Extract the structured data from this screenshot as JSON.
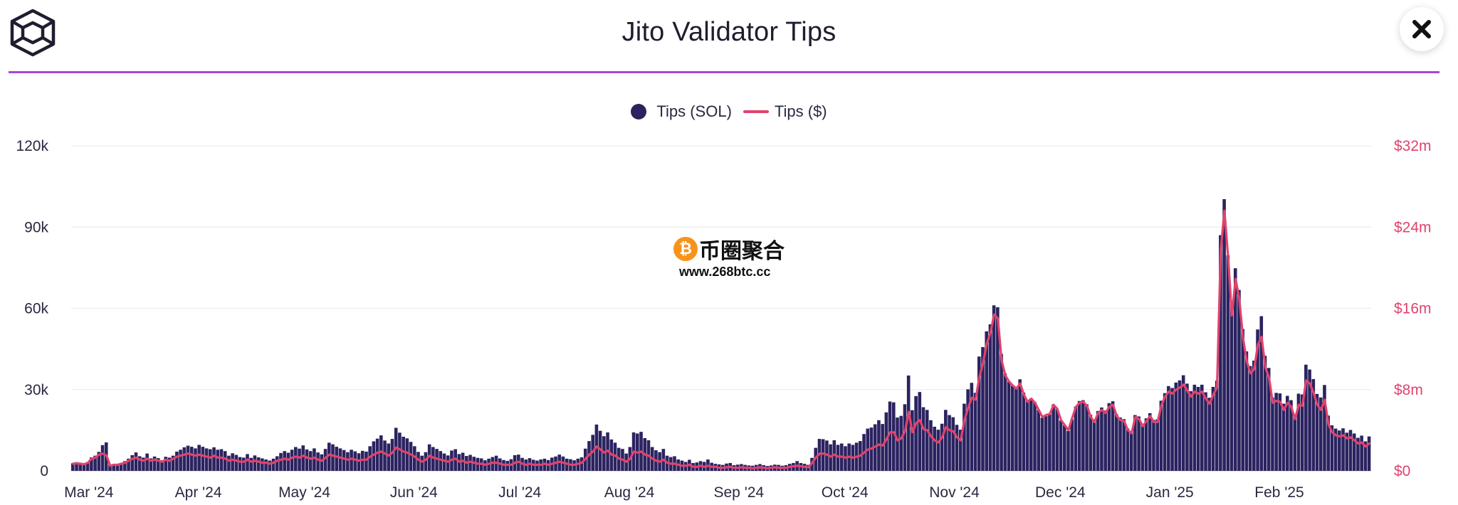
{
  "header": {
    "title": "Jito Validator Tips",
    "logo_icon": "cube-logo-icon",
    "close_icon": "close-icon",
    "rule_color": "#a349d0"
  },
  "watermark": {
    "text": "币圈聚合",
    "url": "www.268btc.cc",
    "coin_symbol": "₿"
  },
  "chart_data": {
    "type": "bar",
    "title": "Jito Validator Tips",
    "legend": {
      "position": "top-center"
    },
    "grid": true,
    "colors": {
      "sol": "#2b2360",
      "usd": "#e0436d"
    },
    "series": [
      {
        "name": "Tips (SOL)",
        "type": "bar",
        "axis": "left",
        "values": [
          2800,
          3200,
          2900,
          2600,
          3100,
          5000,
          5600,
          7000,
          9500,
          10500,
          2200,
          2400,
          2600,
          2900,
          3600,
          4500,
          5800,
          6800,
          5400,
          4900,
          6400,
          4600,
          5300,
          4700,
          3900,
          5200,
          4900,
          5600,
          7100,
          7800,
          8700,
          9300,
          8900,
          8300,
          9600,
          8900,
          8300,
          8000,
          8700,
          7800,
          8000,
          7300,
          5600,
          6500,
          5900,
          5100,
          4900,
          6200,
          4800,
          5700,
          5000,
          4600,
          4200,
          3800,
          4500,
          5400,
          6600,
          7300,
          6700,
          7800,
          8800,
          8200,
          9400,
          7900,
          7300,
          8300,
          6800,
          6100,
          8100,
          10400,
          9800,
          8900,
          8300,
          7700,
          6900,
          7800,
          7200,
          6500,
          7400,
          7100,
          9100,
          10900,
          11900,
          13100,
          11200,
          10100,
          11800,
          15900,
          14100,
          12600,
          12000,
          10700,
          9100,
          7000,
          5600,
          6900,
          9800,
          8800,
          8100,
          7300,
          6400,
          5700,
          7500,
          8000,
          6200,
          6700,
          5500,
          5900,
          5200,
          4800,
          4600,
          3900,
          4500,
          5100,
          5600,
          4600,
          4000,
          3700,
          4300,
          5800,
          6000,
          4800,
          4200,
          4700,
          4100,
          3800,
          4200,
          4500,
          4000,
          4900,
          5300,
          6000,
          5300,
          4500,
          4300,
          3900,
          4500,
          5000,
          8200,
          11000,
          13300,
          17100,
          14800,
          12800,
          14200,
          11600,
          10400,
          8500,
          8100,
          6400,
          8800,
          14200,
          13800,
          14400,
          12100,
          11300,
          8800,
          7600,
          6900,
          8100,
          5600,
          5100,
          5400,
          4200,
          3800,
          3300,
          4100,
          2900,
          3100,
          3600,
          3300,
          4200,
          3000,
          2600,
          2400,
          2200,
          2700,
          2900,
          2100,
          2300,
          2500,
          2200,
          2000,
          1900,
          2200,
          2500,
          2100,
          1800,
          2000,
          2300,
          2200,
          1900,
          2100,
          2600,
          2900,
          3600,
          2900,
          2600,
          2200,
          4800,
          8500,
          11800,
          11700,
          11200,
          9800,
          11300,
          9600,
          10100,
          9100,
          10100,
          9600,
          10400,
          11000,
          13600,
          15600,
          16000,
          17200,
          18700,
          17300,
          21600,
          25600,
          25300,
          19700,
          20300,
          24600,
          35200,
          22400,
          27600,
          29100,
          23500,
          22500,
          18700,
          16300,
          15200,
          17400,
          22500,
          20600,
          19800,
          17000,
          15200,
          24800,
          30100,
          32500,
          28800,
          42200,
          45700,
          51500,
          54100,
          61100,
          60400,
          43200,
          36000,
          33000,
          31500,
          30400,
          33800,
          28900,
          25700,
          26800,
          25400,
          22500,
          19600,
          20200,
          20900,
          24500,
          22800,
          18600,
          16800,
          14700,
          19000,
          23700,
          25800,
          26100,
          24600,
          20700,
          18500,
          22100,
          23400,
          22300,
          25000,
          25700,
          20900,
          19700,
          19100,
          15600,
          14100,
          20600,
          20100,
          17300,
          19400,
          21300,
          18800,
          19000,
          25900,
          28700,
          31300,
          30600,
          32600,
          33400,
          35300,
          32200,
          29400,
          31800,
          31000,
          31800,
          29000,
          27000,
          31000,
          33300,
          87000,
          100300,
          79600,
          61500,
          74800,
          66800,
          52400,
          44100,
          38700,
          40700,
          52200,
          57100,
          42500,
          38000,
          27100,
          28800,
          28600,
          24800,
          27700,
          26100,
          20900,
          28500,
          28200,
          39200,
          37400,
          33900,
          28400,
          27100,
          31700,
          20400,
          16800,
          15600,
          14900,
          15700,
          14100,
          15100,
          13800,
          12200,
          13000,
          10900,
          12700
        ]
      },
      {
        "name": "Tips ($)",
        "type": "line",
        "axis": "right",
        "values": [
          0.7,
          0.75,
          0.7,
          0.65,
          0.8,
          1.2,
          1.3,
          1.6,
          1.7,
          1.5,
          0.5,
          0.6,
          0.6,
          0.7,
          0.8,
          1.0,
          1.2,
          1.3,
          1.1,
          1.0,
          1.2,
          1.0,
          1.1,
          1.0,
          0.9,
          1.1,
          1.0,
          1.2,
          1.4,
          1.5,
          1.6,
          1.7,
          1.6,
          1.5,
          1.6,
          1.5,
          1.4,
          1.3,
          1.5,
          1.3,
          1.3,
          1.2,
          1.0,
          1.1,
          1.0,
          0.9,
          0.9,
          1.1,
          0.9,
          1.0,
          0.9,
          0.8,
          0.8,
          0.7,
          0.8,
          1.0,
          1.1,
          1.2,
          1.1,
          1.3,
          1.4,
          1.3,
          1.5,
          1.3,
          1.2,
          1.3,
          1.1,
          1.0,
          1.3,
          1.6,
          1.5,
          1.4,
          1.3,
          1.2,
          1.1,
          1.2,
          1.1,
          1.0,
          1.1,
          1.1,
          1.4,
          1.6,
          1.8,
          1.9,
          1.7,
          1.5,
          1.8,
          2.3,
          2.1,
          1.9,
          1.8,
          1.6,
          1.4,
          1.1,
          0.9,
          1.1,
          1.5,
          1.3,
          1.2,
          1.1,
          1.0,
          0.9,
          1.1,
          1.2,
          0.9,
          1.0,
          0.8,
          0.9,
          0.8,
          0.7,
          0.7,
          0.6,
          0.7,
          0.8,
          0.8,
          0.7,
          0.6,
          0.6,
          0.6,
          0.8,
          0.9,
          0.7,
          0.6,
          0.7,
          0.6,
          0.6,
          0.6,
          0.7,
          0.6,
          0.7,
          0.8,
          0.9,
          0.8,
          0.7,
          0.6,
          0.6,
          0.7,
          0.8,
          1.2,
          1.6,
          1.9,
          2.4,
          2.1,
          1.8,
          2.0,
          1.6,
          1.5,
          1.2,
          1.1,
          0.9,
          1.2,
          1.9,
          1.8,
          1.9,
          1.6,
          1.5,
          1.2,
          1.0,
          0.9,
          1.1,
          0.8,
          0.7,
          0.7,
          0.6,
          0.5,
          0.5,
          0.6,
          0.4,
          0.4,
          0.5,
          0.4,
          0.5,
          0.4,
          0.4,
          0.3,
          0.3,
          0.35,
          0.4,
          0.3,
          0.3,
          0.35,
          0.3,
          0.3,
          0.25,
          0.3,
          0.35,
          0.3,
          0.25,
          0.3,
          0.35,
          0.3,
          0.3,
          0.3,
          0.4,
          0.45,
          0.5,
          0.45,
          0.4,
          0.35,
          0.8,
          1.3,
          1.7,
          1.7,
          1.6,
          1.4,
          1.6,
          1.4,
          1.4,
          1.3,
          1.4,
          1.3,
          1.4,
          1.5,
          1.8,
          2.1,
          2.2,
          2.4,
          2.6,
          2.5,
          3.1,
          3.8,
          3.8,
          3.0,
          3.2,
          3.9,
          5.8,
          3.8,
          4.7,
          5.0,
          4.1,
          4.0,
          3.4,
          3.0,
          2.8,
          3.3,
          4.3,
          4.0,
          3.9,
          3.3,
          3.0,
          5.0,
          6.2,
          7.2,
          7.0,
          9.2,
          10.6,
          12.5,
          13.6,
          15.4,
          15.0,
          10.9,
          9.4,
          8.8,
          8.4,
          8.1,
          8.6,
          7.5,
          6.8,
          7.1,
          6.7,
          6.0,
          5.3,
          5.5,
          5.6,
          6.5,
          6.1,
          5.0,
          4.5,
          4.0,
          5.2,
          6.3,
          6.7,
          6.8,
          6.4,
          5.3,
          4.8,
          5.7,
          6.0,
          5.7,
          6.3,
          6.5,
          5.4,
          5.0,
          4.9,
          4.0,
          3.7,
          5.3,
          5.1,
          4.4,
          4.9,
          5.4,
          4.8,
          4.8,
          6.4,
          7.3,
          7.8,
          7.6,
          8.0,
          8.2,
          8.5,
          7.9,
          7.3,
          7.8,
          7.6,
          7.8,
          7.1,
          6.6,
          7.5,
          8.2,
          21.7,
          25.6,
          21.0,
          15.3,
          18.9,
          16.9,
          13.1,
          10.8,
          9.6,
          10.0,
          12.4,
          13.2,
          10.2,
          9.2,
          6.7,
          6.9,
          6.8,
          6.0,
          6.7,
          6.3,
          5.1,
          6.5,
          6.4,
          8.9,
          8.6,
          7.7,
          6.5,
          6.0,
          7.0,
          4.6,
          3.8,
          3.5,
          3.4,
          3.5,
          3.2,
          3.3,
          3.0,
          2.7,
          2.8,
          2.4,
          2.7
        ]
      }
    ],
    "x": {
      "start": "2024-02-25",
      "end": "2025-02-27",
      "unit": "day"
    },
    "x_ticks": [
      {
        "label": "Mar '24",
        "date": "2024-03-01"
      },
      {
        "label": "Apr '24",
        "date": "2024-04-01"
      },
      {
        "label": "May '24",
        "date": "2024-05-01"
      },
      {
        "label": "Jun '24",
        "date": "2024-06-01"
      },
      {
        "label": "Jul '24",
        "date": "2024-07-01"
      },
      {
        "label": "Aug '24",
        "date": "2024-08-01"
      },
      {
        "label": "Sep '24",
        "date": "2024-09-01"
      },
      {
        "label": "Oct '24",
        "date": "2024-10-01"
      },
      {
        "label": "Nov '24",
        "date": "2024-11-01"
      },
      {
        "label": "Dec '24",
        "date": "2024-12-01"
      },
      {
        "label": "Jan '25",
        "date": "2025-01-01"
      },
      {
        "label": "Feb '25",
        "date": "2025-02-01"
      }
    ],
    "y_left": {
      "ylim": [
        0,
        120000
      ],
      "ticks": [
        0,
        30000,
        60000,
        90000,
        120000
      ],
      "tick_labels": [
        "0",
        "30k",
        "60k",
        "90k",
        "120k"
      ]
    },
    "y_right": {
      "ylim": [
        0,
        32
      ],
      "unit": "$m",
      "ticks": [
        0,
        8,
        16,
        24,
        32
      ],
      "tick_labels": [
        "$0",
        "$8m",
        "$16m",
        "$24m",
        "$32m"
      ]
    }
  }
}
